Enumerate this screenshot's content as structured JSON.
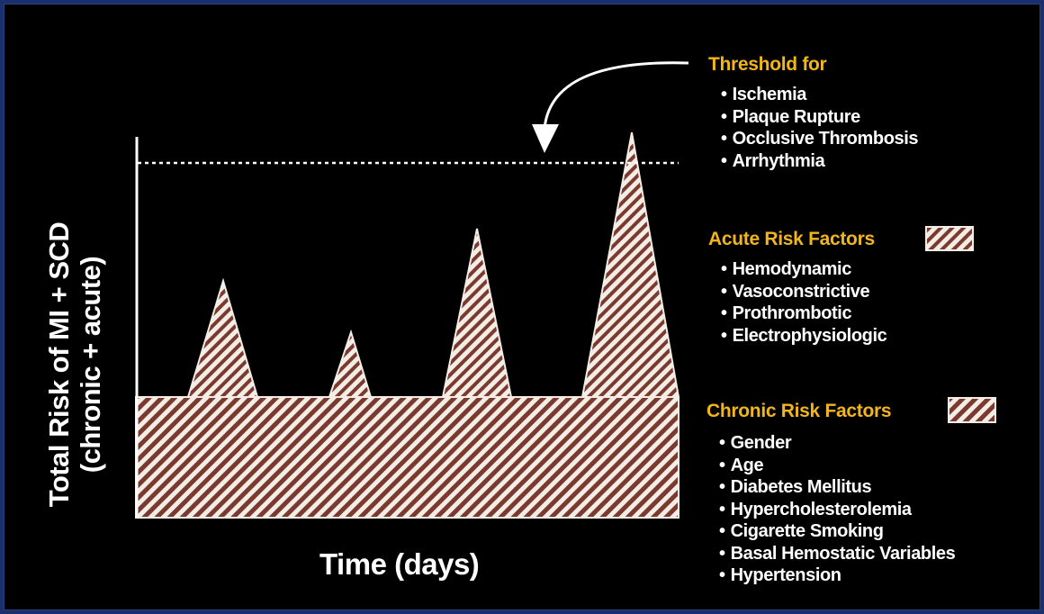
{
  "colors": {
    "background": "#000000",
    "frame": "#1a2f6b",
    "heading": "#f2b61b",
    "text": "#ffffff",
    "hatch": "#7a3a30",
    "hatch_bg": "#f3ede6"
  },
  "diagram": {
    "y_axis_label_line1": "Total Risk of MI + SCD",
    "y_axis_label_line2": "(chronic + acute)",
    "x_axis_label": "Time (days)"
  },
  "legend": {
    "threshold": {
      "heading": "Threshold for",
      "items": [
        "Ischemia",
        "Plaque Rupture",
        "Occlusive Thrombosis",
        "Arrhythmia"
      ]
    },
    "acute": {
      "heading": "Acute Risk Factors",
      "items": [
        "Hemodynamic",
        "Vasoconstrictive",
        "Prothrombotic",
        "Electrophysiologic"
      ]
    },
    "chronic": {
      "heading": "Chronic Risk Factors",
      "items": [
        "Gender",
        "Age",
        "Diabetes Mellitus",
        "Hypercholesterolemia",
        "Cigarette Smoking",
        "Basal Hemostatic Variables",
        "Hypertension"
      ]
    }
  }
}
